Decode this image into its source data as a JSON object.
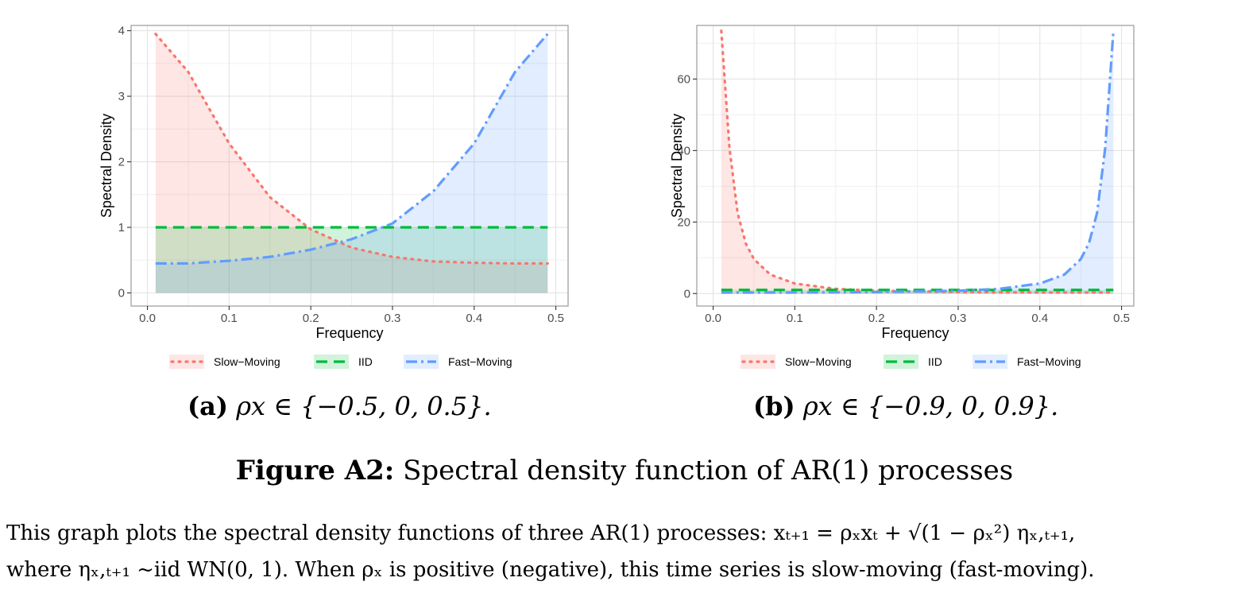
{
  "chart_data": [
    {
      "type": "area",
      "xlabel": "Frequency",
      "ylabel": "Spectral Density",
      "xlim": [
        -0.02,
        0.515
      ],
      "ylim": [
        -0.2,
        4.08
      ],
      "x_ticks": [
        0.0,
        0.1,
        0.2,
        0.3,
        0.4,
        0.5
      ],
      "x_tick_labels": [
        "0.0",
        "0.1",
        "0.2",
        "0.3",
        "0.4",
        "0.5"
      ],
      "y_ticks": [
        0,
        1,
        2,
        3,
        4
      ],
      "y_tick_labels": [
        "0",
        "1",
        "2",
        "3",
        "4"
      ],
      "grid": true,
      "legend_position": "bottom",
      "x": [
        0.01,
        0.05,
        0.1,
        0.15,
        0.2,
        0.25,
        0.3,
        0.35,
        0.4,
        0.45,
        0.49
      ],
      "series": [
        {
          "name": "Slow−Moving",
          "rho": 0.5,
          "color": "#f8766d",
          "values": [
            3.95,
            3.37,
            2.28,
            1.46,
            0.97,
            0.69,
            0.55,
            0.48,
            0.46,
            0.45,
            0.45
          ]
        },
        {
          "name": "IID",
          "rho": 0.0,
          "color": "#00ba38",
          "values": [
            1,
            1,
            1,
            1,
            1,
            1,
            1,
            1,
            1,
            1,
            1
          ]
        },
        {
          "name": "Fast−Moving",
          "rho": -0.5,
          "color": "#619cff",
          "values": [
            0.45,
            0.45,
            0.49,
            0.55,
            0.66,
            0.82,
            1.06,
            1.55,
            2.28,
            3.37,
            3.95
          ]
        }
      ],
      "caption": {
        "letter": "(a)",
        "text": "ρx ∈ {−0.5,  0,  0.5}."
      }
    },
    {
      "type": "area",
      "xlabel": "Frequency",
      "ylabel": "Spectral Density",
      "xlim": [
        -0.02,
        0.515
      ],
      "ylim": [
        -3.5,
        75
      ],
      "x_ticks": [
        0.0,
        0.1,
        0.2,
        0.3,
        0.4,
        0.5
      ],
      "x_tick_labels": [
        "0.0",
        "0.1",
        "0.2",
        "0.3",
        "0.4",
        "0.5"
      ],
      "y_ticks": [
        0,
        20,
        40,
        60
      ],
      "y_tick_labels": [
        "0",
        "20",
        "40",
        "60"
      ],
      "grid": true,
      "legend_position": "bottom",
      "x": [
        0.01,
        0.02,
        0.03,
        0.04,
        0.05,
        0.07,
        0.1,
        0.15,
        0.2,
        0.3,
        0.35,
        0.4,
        0.43,
        0.45,
        0.46,
        0.47,
        0.48,
        0.49
      ],
      "series": [
        {
          "name": "Slow−Moving",
          "rho": 0.9,
          "color": "#f8766d",
          "values": [
            73.5,
            40.7,
            22.5,
            14.0,
            9.6,
            5.3,
            2.8,
            1.3,
            0.79,
            0.41,
            0.33,
            0.29,
            0.28,
            0.28,
            0.28,
            0.28,
            0.28,
            0.28
          ]
        },
        {
          "name": "IID",
          "rho": 0.0,
          "color": "#00ba38",
          "values": [
            1,
            1,
            1,
            1,
            1,
            1,
            1,
            1,
            1,
            1,
            1,
            1,
            1,
            1,
            1,
            1,
            1,
            1
          ]
        },
        {
          "name": "Fast−Moving",
          "rho": -0.9,
          "color": "#619cff",
          "values": [
            0.28,
            0.28,
            0.28,
            0.28,
            0.28,
            0.28,
            0.29,
            0.33,
            0.41,
            0.79,
            1.3,
            2.8,
            5.3,
            9.6,
            14.0,
            22.5,
            40.7,
            73.5
          ]
        }
      ],
      "caption": {
        "letter": "(b)",
        "text": "ρx ∈ {−0.9,  0,  0.9}."
      }
    }
  ],
  "figure": {
    "label": "Figure A2:",
    "title": "Spectral density function of AR(1) processes",
    "note_line1": "This graph plots the spectral density functions of three AR(1) processes:  xₜ₊₁ = ρₓxₜ + √(1 − ρₓ²) ηₓ,ₜ₊₁,",
    "note_line2": "where ηₓ,ₜ₊₁ ~iid WN(0, 1). When ρₓ is positive (negative), this time series is slow-moving (fast-moving)."
  }
}
